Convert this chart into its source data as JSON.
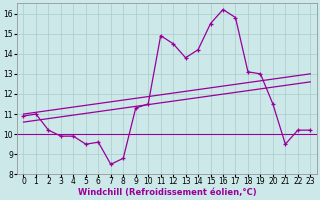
{
  "xlabel": "Windchill (Refroidissement éolien,°C)",
  "background_color": "#cce8e8",
  "line_color": "#990099",
  "x_values": [
    0,
    1,
    2,
    3,
    4,
    5,
    6,
    7,
    8,
    9,
    10,
    11,
    12,
    13,
    14,
    15,
    16,
    17,
    18,
    19,
    20,
    21,
    22,
    23
  ],
  "windchill_values": [
    10.9,
    11.0,
    10.2,
    9.9,
    9.9,
    9.5,
    9.6,
    8.5,
    8.8,
    11.3,
    11.5,
    14.9,
    14.5,
    13.8,
    14.2,
    15.5,
    16.2,
    15.8,
    13.1,
    13.0,
    11.5,
    9.5,
    10.2,
    10.2
  ],
  "trend1_x": [
    0,
    23
  ],
  "trend1_y": [
    11.0,
    13.0
  ],
  "trend2_x": [
    0,
    23
  ],
  "trend2_y": [
    10.6,
    12.6
  ],
  "flat_line_y": 10.0,
  "ylim": [
    8,
    16.5
  ],
  "xlim": [
    -0.5,
    23.5
  ],
  "yticks": [
    8,
    9,
    10,
    11,
    12,
    13,
    14,
    15,
    16
  ],
  "xtick_labels": [
    "0",
    "1",
    "2",
    "3",
    "4",
    "5",
    "6",
    "7",
    "8",
    "9",
    "10",
    "11",
    "12",
    "13",
    "14",
    "15",
    "16",
    "17",
    "18",
    "19",
    "20",
    "21",
    "22",
    "23"
  ],
  "grid_color": "#aacccc",
  "spine_color": "#888888",
  "tick_fontsize": 5.5,
  "xlabel_fontsize": 6.0
}
